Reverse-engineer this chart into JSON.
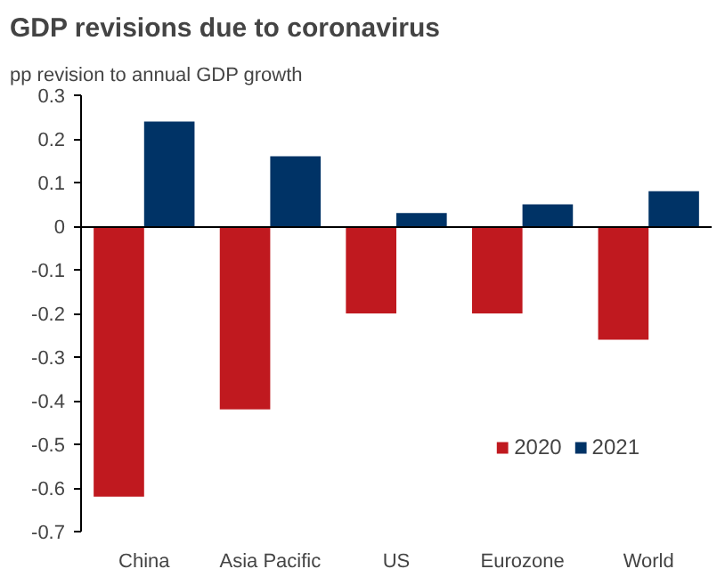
{
  "chart_data": {
    "type": "bar",
    "title": "GDP revisions due to coronavirus",
    "ylabel": "pp revision to annual GDP growth",
    "categories": [
      "China",
      "Asia Pacific",
      "US",
      "Eurozone",
      "World"
    ],
    "series": [
      {
        "name": "2020",
        "color": "#c0191f",
        "values": [
          -0.62,
          -0.42,
          -0.2,
          -0.2,
          -0.26
        ]
      },
      {
        "name": "2021",
        "color": "#003366",
        "values": [
          0.24,
          0.16,
          0.03,
          0.05,
          0.08
        ]
      }
    ],
    "ylim": [
      -0.7,
      0.3
    ],
    "yticks": [
      -0.7,
      -0.6,
      -0.5,
      -0.4,
      -0.3,
      -0.2,
      -0.1,
      0,
      0.1,
      0.2,
      0.3
    ],
    "legend": "bottom right"
  }
}
